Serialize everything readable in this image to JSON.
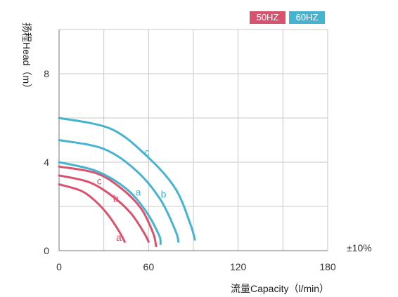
{
  "legend": {
    "hz50": "50HZ",
    "hz60": "60HZ"
  },
  "tolerance": "±10%",
  "colors": {
    "hz50": "#d9536e",
    "hz60": "#46b4d0",
    "grid": "#c9c9c9",
    "axis": "#777777"
  },
  "chart_data": {
    "type": "line",
    "xlabel": "流量Capacity（l/min）",
    "ylabel": "扬程Head（m）",
    "xlim": [
      0,
      180
    ],
    "ylim": [
      0,
      10
    ],
    "x_ticks": [
      0,
      60,
      120,
      180
    ],
    "y_ticks": [
      0,
      4,
      8
    ],
    "grid": true,
    "legend_position": "top-right",
    "series": [
      {
        "name": "a",
        "group": "50HZ",
        "x": [
          0,
          15,
          25,
          33,
          40,
          44
        ],
        "y": [
          3.0,
          2.7,
          2.2,
          1.6,
          0.9,
          0.4
        ]
      },
      {
        "name": "b",
        "group": "50HZ",
        "x": [
          0,
          20,
          35,
          48,
          57,
          60
        ],
        "y": [
          3.4,
          3.1,
          2.5,
          1.7,
          0.8,
          0.4
        ]
      },
      {
        "name": "c",
        "group": "50HZ",
        "x": [
          0,
          25,
          42,
          55,
          63,
          65
        ],
        "y": [
          3.8,
          3.5,
          2.8,
          1.9,
          0.8,
          0.2
        ]
      },
      {
        "name": "a",
        "group": "60HZ",
        "x": [
          0,
          25,
          45,
          58,
          67,
          68
        ],
        "y": [
          4.0,
          3.6,
          2.8,
          1.8,
          0.7,
          0.3
        ]
      },
      {
        "name": "b",
        "group": "60HZ",
        "x": [
          0,
          30,
          52,
          68,
          78,
          80
        ],
        "y": [
          5.0,
          4.6,
          3.6,
          2.3,
          0.9,
          0.4
        ]
      },
      {
        "name": "c",
        "group": "60HZ",
        "x": [
          0,
          35,
          60,
          78,
          88,
          91
        ],
        "y": [
          6.0,
          5.5,
          4.2,
          2.8,
          1.2,
          0.5
        ]
      }
    ],
    "labels": [
      {
        "text": "a",
        "group": "50HZ",
        "x": 40,
        "y": 0.45
      },
      {
        "text": "b",
        "group": "50HZ",
        "x": 38,
        "y": 2.2
      },
      {
        "text": "c",
        "group": "50HZ",
        "x": 27,
        "y": 3.0
      },
      {
        "text": "a",
        "group": "60HZ",
        "x": 53,
        "y": 2.5
      },
      {
        "text": "b",
        "group": "60HZ",
        "x": 70,
        "y": 2.4
      },
      {
        "text": "c",
        "group": "60HZ",
        "x": 59,
        "y": 4.3
      }
    ]
  }
}
